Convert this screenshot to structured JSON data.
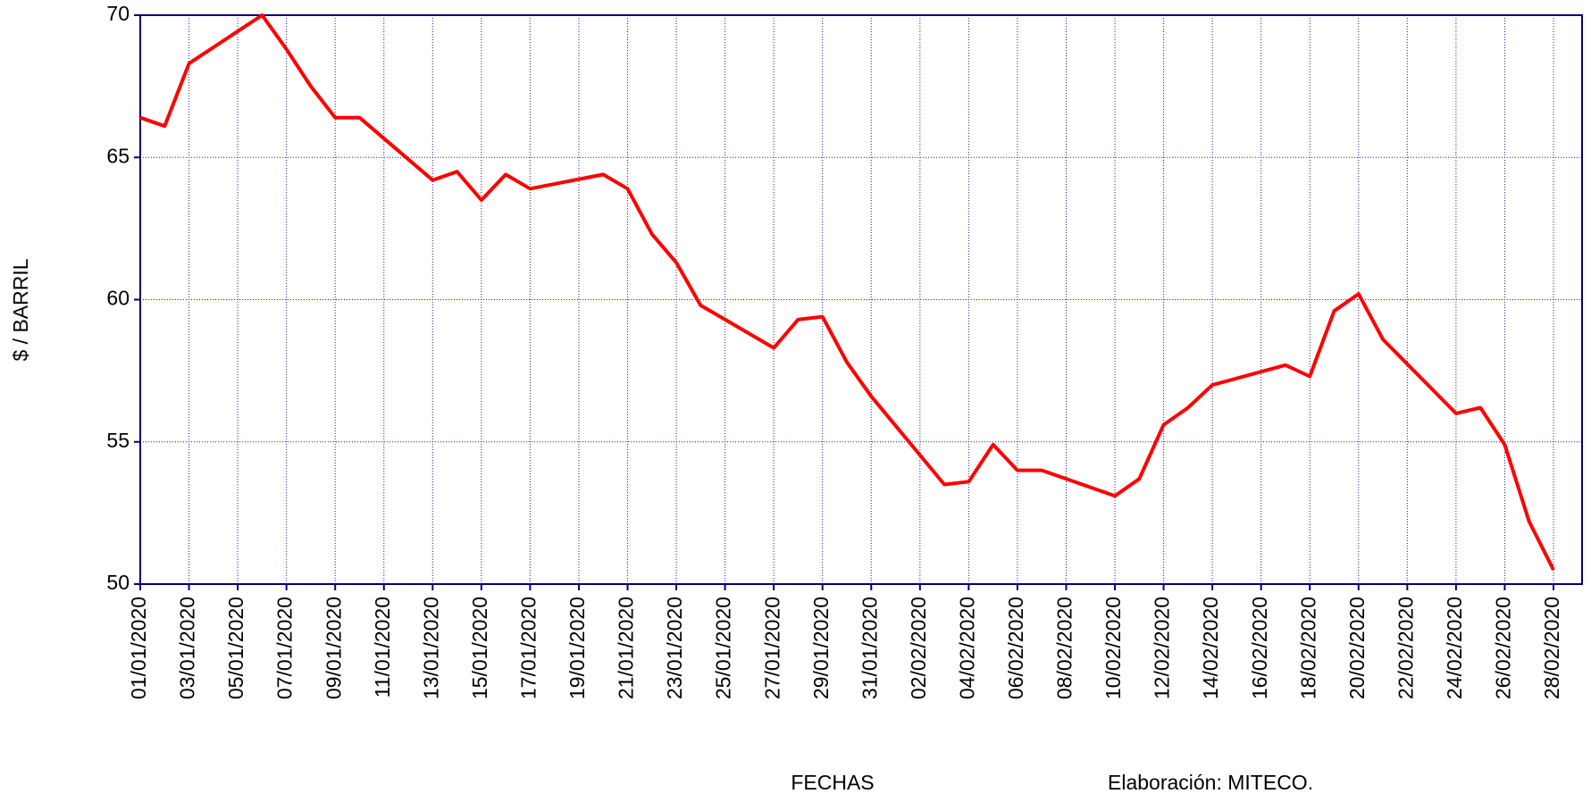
{
  "chart_data": {
    "type": "line",
    "x_label": "FECHAS",
    "y_label": "$ / BARRIL",
    "note": "Elaboración: MITECO.",
    "x": [
      "01/01/2020",
      "02/01/2020",
      "03/01/2020",
      "06/01/2020",
      "07/01/2020",
      "08/01/2020",
      "09/01/2020",
      "10/01/2020",
      "13/01/2020",
      "14/01/2020",
      "15/01/2020",
      "16/01/2020",
      "17/01/2020",
      "20/01/2020",
      "21/01/2020",
      "22/01/2020",
      "23/01/2020",
      "24/01/2020",
      "27/01/2020",
      "28/01/2020",
      "29/01/2020",
      "30/01/2020",
      "31/01/2020",
      "03/02/2020",
      "04/02/2020",
      "05/02/2020",
      "06/02/2020",
      "07/02/2020",
      "10/02/2020",
      "11/02/2020",
      "12/02/2020",
      "13/02/2020",
      "14/02/2020",
      "17/02/2020",
      "18/02/2020",
      "19/02/2020",
      "20/02/2020",
      "21/02/2020",
      "24/02/2020",
      "25/02/2020",
      "26/02/2020",
      "27/02/2020",
      "28/02/2020"
    ],
    "series": [
      {
        "color": "#ff0000",
        "values": [
          66.4,
          66.1,
          68.3,
          70.0,
          68.8,
          67.5,
          66.4,
          66.4,
          64.2,
          64.5,
          63.5,
          64.4,
          63.9,
          64.4,
          63.9,
          62.3,
          61.3,
          59.8,
          58.3,
          59.3,
          59.4,
          57.8,
          56.6,
          53.5,
          53.6,
          54.9,
          54.0,
          54.0,
          53.1,
          53.7,
          55.6,
          56.2,
          57.0,
          57.7,
          57.3,
          59.6,
          60.2,
          58.6,
          56.0,
          56.2,
          54.9,
          52.2,
          50.5
        ]
      }
    ],
    "xlim": [
      "01/01/2020",
      "28/02/2020"
    ],
    "xticks": [
      "01/01/2020",
      "03/01/2020",
      "05/01/2020",
      "07/01/2020",
      "09/01/2020",
      "11/01/2020",
      "13/01/2020",
      "15/01/2020",
      "17/01/2020",
      "19/01/2020",
      "21/01/2020",
      "23/01/2020",
      "25/01/2020",
      "27/01/2020",
      "29/01/2020",
      "31/01/2020",
      "02/02/2020",
      "04/02/2020",
      "06/02/2020",
      "08/02/2020",
      "10/02/2020",
      "12/02/2020",
      "14/02/2020",
      "16/02/2020",
      "18/02/2020",
      "20/02/2020",
      "22/02/2020",
      "24/02/2020",
      "26/02/2020",
      "28/02/2020"
    ],
    "ylim": [
      50,
      70
    ],
    "yticks": [
      50,
      55,
      60,
      65,
      70
    ],
    "grid": true
  }
}
